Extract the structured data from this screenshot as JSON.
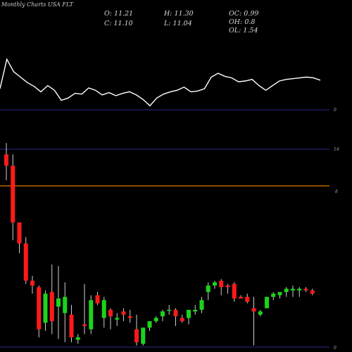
{
  "chart_data": {
    "type": "candlestick",
    "title": "Monthly Charts USA FLT",
    "ohlc_readout": {
      "O_label": "O:",
      "O": "11.21",
      "H_label": "H:",
      "H": "11.30",
      "OC_label": "OC:",
      "OC": "0.99",
      "C_label": "C:",
      "C": "11.10",
      "L_label": "L:",
      "L": "11.04",
      "OH_label": "OH:",
      "OH": "0.8",
      "OL_label": "OL:",
      "OL": "1.54"
    },
    "indicator_panel": {
      "axis_label": "0",
      "values": [
        40,
        78,
        62,
        55,
        48,
        43,
        36,
        44,
        38,
        25,
        28,
        34,
        33,
        41,
        38,
        32,
        35,
        31,
        34,
        36,
        32,
        26,
        18,
        28,
        33,
        36,
        38,
        42,
        36,
        37,
        40,
        55,
        60,
        56,
        54,
        49,
        50,
        52,
        44,
        38,
        44,
        50,
        52,
        53,
        54,
        55,
        54,
        51
      ]
    },
    "price_panel": {
      "axis_labels": {
        "upper": "14",
        "mid": "8",
        "bottom": "0"
      },
      "candles": [
        {
          "o": 11.2,
          "h": 12.6,
          "l": 10.3,
          "c": 11.9,
          "color": "red"
        },
        {
          "o": 11.2,
          "h": 11.9,
          "l": 6.6,
          "c": 7.7,
          "color": "red"
        },
        {
          "o": 7.7,
          "h": 7.7,
          "l": 5.8,
          "c": 6.4,
          "color": "red"
        },
        {
          "o": 6.4,
          "h": 6.8,
          "l": 3.9,
          "c": 4.1,
          "color": "red"
        },
        {
          "o": 4.1,
          "h": 4.4,
          "l": 3.3,
          "c": 3.8,
          "color": "red"
        },
        {
          "o": 3.7,
          "h": 3.8,
          "l": 0.6,
          "c": 1.1,
          "color": "red"
        },
        {
          "o": 1.5,
          "h": 3.5,
          "l": 1.0,
          "c": 3.3,
          "color": "green"
        },
        {
          "o": 3.4,
          "h": 5.1,
          "l": 0.8,
          "c": 1.6,
          "color": "red"
        },
        {
          "o": 2.5,
          "h": 5.0,
          "l": 0.5,
          "c": 3.0,
          "color": "green"
        },
        {
          "o": 3.1,
          "h": 4.0,
          "l": 0.3,
          "c": 2.1,
          "color": "green"
        },
        {
          "o": 2.0,
          "h": 2.6,
          "l": 0.3,
          "c": 0.6,
          "color": "red"
        },
        {
          "o": 0.6,
          "h": 0.8,
          "l": 0.2,
          "c": 0.45,
          "color": "green"
        },
        {
          "o": 1.4,
          "h": 3.9,
          "l": 0.8,
          "c": 1.3,
          "color": "red"
        },
        {
          "o": 1.1,
          "h": 3.2,
          "l": 0.8,
          "c": 2.9,
          "color": "green"
        },
        {
          "o": 3.2,
          "h": 3.4,
          "l": 2.6,
          "c": 2.7,
          "color": "red"
        },
        {
          "o": 2.9,
          "h": 3.1,
          "l": 1.2,
          "c": 1.8,
          "color": "green"
        },
        {
          "o": 2.3,
          "h": 2.4,
          "l": 1.1,
          "c": 1.9,
          "color": "red"
        },
        {
          "o": 1.8,
          "h": 2.1,
          "l": 1.3,
          "c": 1.7,
          "color": "green"
        },
        {
          "o": 2.0,
          "h": 2.4,
          "l": 1.6,
          "c": 2.2,
          "color": "red"
        },
        {
          "o": 1.9,
          "h": 2.3,
          "l": 1.5,
          "c": 1.8,
          "color": "red"
        },
        {
          "o": 1.1,
          "h": 2.0,
          "l": 0.1,
          "c": 0.3,
          "color": "red"
        },
        {
          "o": 0.2,
          "h": 1.2,
          "l": 0.1,
          "c": 1.2,
          "color": "green"
        },
        {
          "o": 1.2,
          "h": 1.6,
          "l": 1.0,
          "c": 1.6,
          "color": "green"
        },
        {
          "o": 1.6,
          "h": 1.9,
          "l": 1.5,
          "c": 1.8,
          "color": "green"
        },
        {
          "o": 1.9,
          "h": 2.3,
          "l": 1.6,
          "c": 2.2,
          "color": "green"
        },
        {
          "o": 2.3,
          "h": 2.6,
          "l": 2.0,
          "c": 2.3,
          "color": "green"
        },
        {
          "o": 2.3,
          "h": 2.4,
          "l": 1.3,
          "c": 1.9,
          "color": "red"
        },
        {
          "o": 1.8,
          "h": 2.0,
          "l": 1.5,
          "c": 1.6,
          "color": "red"
        },
        {
          "o": 2.3,
          "h": 2.3,
          "l": 1.4,
          "c": 1.8,
          "color": "green"
        },
        {
          "o": 2.2,
          "h": 2.6,
          "l": 2.0,
          "c": 2.3,
          "color": "green"
        },
        {
          "o": 2.3,
          "h": 3.1,
          "l": 2.1,
          "c": 2.9,
          "color": "green"
        },
        {
          "o": 3.4,
          "h": 4.0,
          "l": 2.9,
          "c": 3.8,
          "color": "green"
        },
        {
          "o": 3.8,
          "h": 4.1,
          "l": 3.6,
          "c": 4.0,
          "color": "green"
        },
        {
          "o": 4.1,
          "h": 4.2,
          "l": 3.2,
          "c": 3.7,
          "color": "red"
        },
        {
          "o": 3.8,
          "h": 3.9,
          "l": 3.3,
          "c": 3.7,
          "color": "red"
        },
        {
          "o": 3.9,
          "h": 4.0,
          "l": 2.8,
          "c": 3.0,
          "color": "red"
        },
        {
          "o": 3.0,
          "h": 3.2,
          "l": 3.0,
          "c": 3.1,
          "color": "red"
        },
        {
          "o": 3.1,
          "h": 3.3,
          "l": 2.7,
          "c": 2.8,
          "color": "red"
        },
        {
          "o": 2.4,
          "h": 3.1,
          "l": 0.1,
          "c": 2.2,
          "color": "red"
        },
        {
          "o": 2.0,
          "h": 2.3,
          "l": 1.9,
          "c": 2.2,
          "color": "green"
        },
        {
          "o": 2.4,
          "h": 3.1,
          "l": 2.4,
          "c": 3.1,
          "color": "green"
        },
        {
          "o": 3.1,
          "h": 3.4,
          "l": 2.9,
          "c": 3.3,
          "color": "green"
        },
        {
          "o": 3.2,
          "h": 3.4,
          "l": 3.0,
          "c": 3.4,
          "color": "green"
        },
        {
          "o": 3.4,
          "h": 3.7,
          "l": 3.1,
          "c": 3.6,
          "color": "green"
        },
        {
          "o": 3.5,
          "h": 3.8,
          "l": 3.1,
          "c": 3.6,
          "color": "green"
        },
        {
          "o": 3.5,
          "h": 3.7,
          "l": 3.1,
          "c": 3.6,
          "color": "green"
        },
        {
          "o": 3.6,
          "h": 3.7,
          "l": 3.4,
          "c": 3.5,
          "color": "red"
        },
        {
          "o": 3.5,
          "h": 3.6,
          "l": 3.2,
          "c": 3.3,
          "color": "red"
        }
      ]
    },
    "colors": {
      "up": "#1bd41b",
      "down": "#ff1a1a",
      "line": "#ffffff",
      "level_line": "#e07a00",
      "grid_line": "#2a2a8a"
    }
  }
}
